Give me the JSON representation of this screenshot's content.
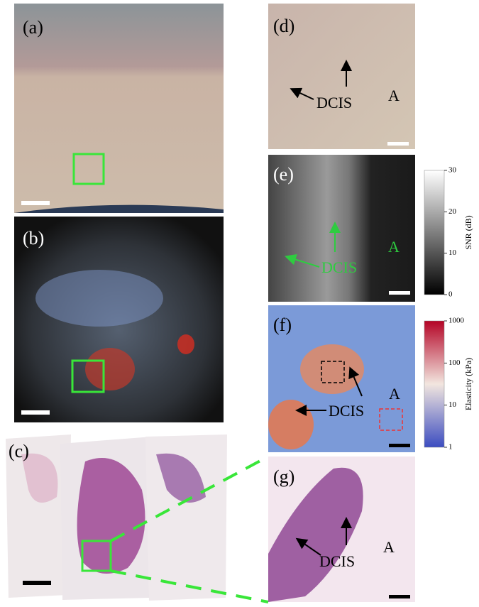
{
  "panels": [
    {
      "label": "(a)"
    },
    {
      "label": "(b)"
    },
    {
      "label": "(c)"
    },
    {
      "label": "(d)",
      "lesion": "DCIS",
      "region": "A"
    },
    {
      "label": "(e)",
      "lesion": "DCIS",
      "region": "A"
    },
    {
      "label": "(f)",
      "lesion": "DCIS",
      "region": "A"
    },
    {
      "label": "(g)",
      "lesion": "DCIS",
      "region": "A"
    }
  ],
  "colorbars": [
    {
      "title": "SNR (dB)",
      "lim": [
        0,
        30
      ],
      "ticks": [
        0,
        10,
        20,
        30
      ],
      "log": false
    },
    {
      "title": "Elasticity (kPa)",
      "lim": [
        1,
        1000
      ],
      "ticks": [
        1,
        10,
        100,
        1000
      ],
      "log": true
    }
  ]
}
